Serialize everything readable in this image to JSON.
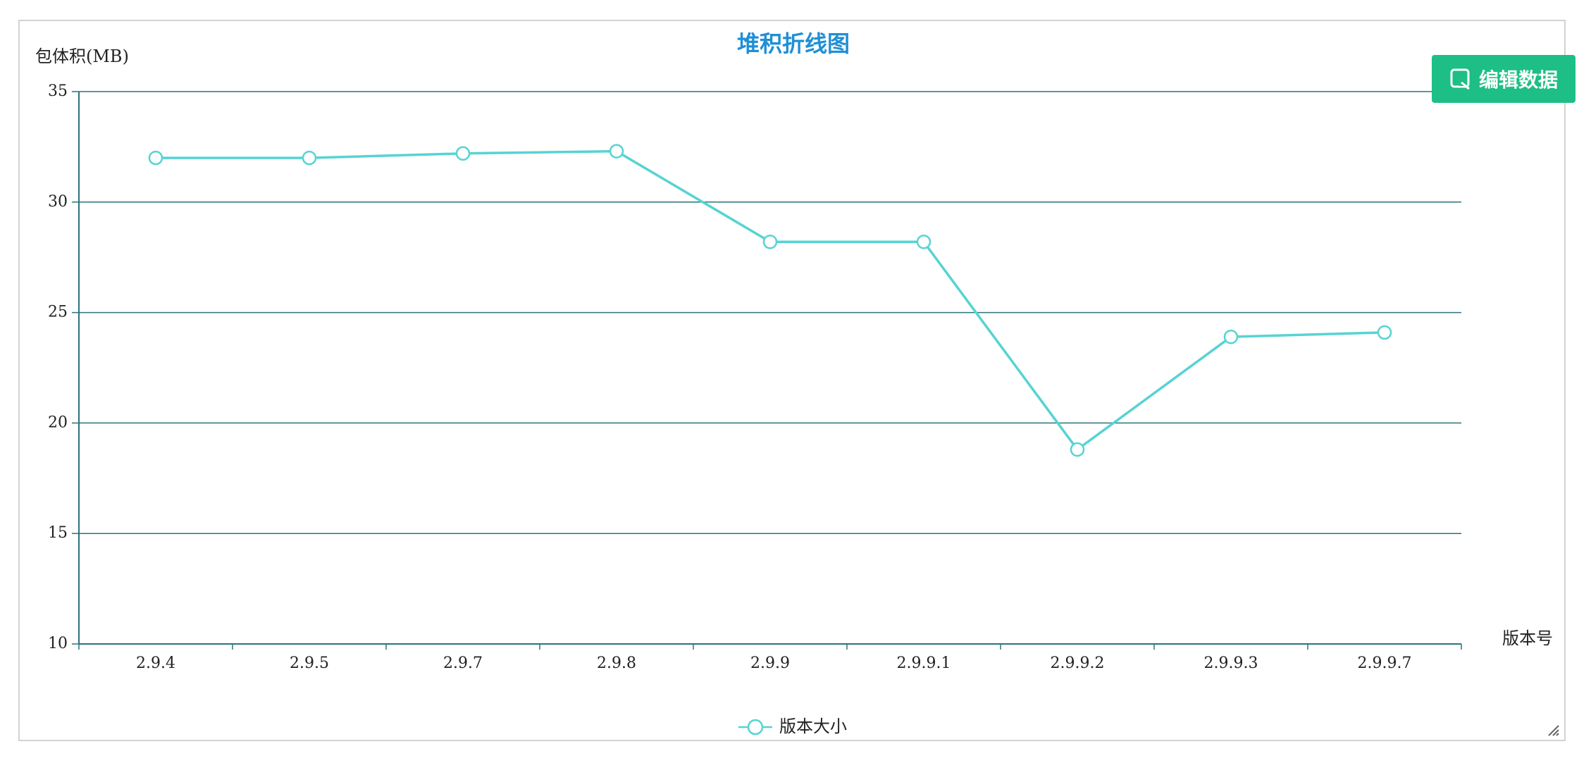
{
  "toolbar": {
    "edit_label": "编辑数据",
    "edit_icon": "edit-note-icon"
  },
  "colors": {
    "title": "#1f8fd6",
    "series": "#57d3d3",
    "axis": "#2b7379",
    "grid": "#2b7379",
    "button": "#1dbf86",
    "text": "#222222"
  },
  "chart_data": {
    "type": "line",
    "title": "堆积折线图",
    "xlabel": "版本号",
    "ylabel": "包体积(MB)",
    "categories": [
      "2.9.4",
      "2.9.5",
      "2.9.7",
      "2.9.8",
      "2.9.9",
      "2.9.9.1",
      "2.9.9.2",
      "2.9.9.3",
      "2.9.9.7"
    ],
    "series": [
      {
        "name": "版本大小",
        "values": [
          32.0,
          32.0,
          32.2,
          32.3,
          28.2,
          28.2,
          18.8,
          23.9,
          24.1
        ]
      }
    ],
    "ylim": [
      10,
      35
    ],
    "yticks": [
      10,
      15,
      20,
      25,
      30,
      35
    ],
    "grid": true,
    "legend": "bottom-center"
  }
}
